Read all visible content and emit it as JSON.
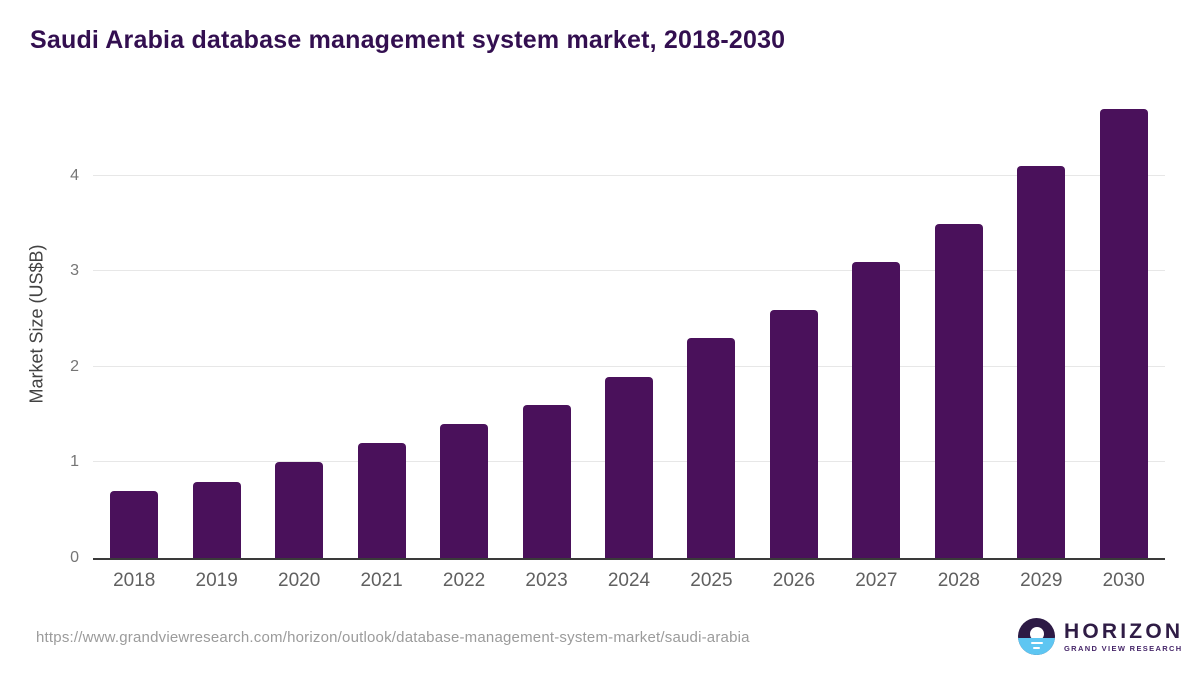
{
  "chart_data": {
    "type": "bar",
    "title": "Saudi Arabia database management system market, 2018-2030",
    "categories": [
      "2018",
      "2019",
      "2020",
      "2021",
      "2022",
      "2023",
      "2024",
      "2025",
      "2026",
      "2027",
      "2028",
      "2029",
      "2030"
    ],
    "values": [
      0.7,
      0.8,
      1.0,
      1.2,
      1.4,
      1.6,
      1.9,
      2.3,
      2.6,
      3.1,
      3.5,
      4.1,
      4.7
    ],
    "xlabel": "",
    "ylabel": "Market Size (US$B)",
    "yticks": [
      0,
      1,
      2,
      3,
      4
    ],
    "ylim": [
      0,
      4.92
    ],
    "grid": "horizontal-only",
    "legend": "none",
    "bar_color": "#4a115b"
  },
  "footer": {
    "source_url": "https://www.grandviewresearch.com/horizon/outlook/database-management-system-market/saudi-arabia",
    "logo": {
      "icon": "sunset-horizon-icon",
      "wordmark": "HORIZON",
      "subtitle": "GRAND VIEW RESEARCH"
    }
  },
  "colors": {
    "background": "#ffffff",
    "title": "#330f50",
    "bar": "#4a115b",
    "gridline": "#e7e7e7",
    "axis_line": "#3a3a3a",
    "tick_label": "#757575",
    "axis_title": "#424242",
    "url_text": "#9b9b9b",
    "logo_dark": "#2d1a45",
    "logo_blue": "#5ec6f2"
  }
}
